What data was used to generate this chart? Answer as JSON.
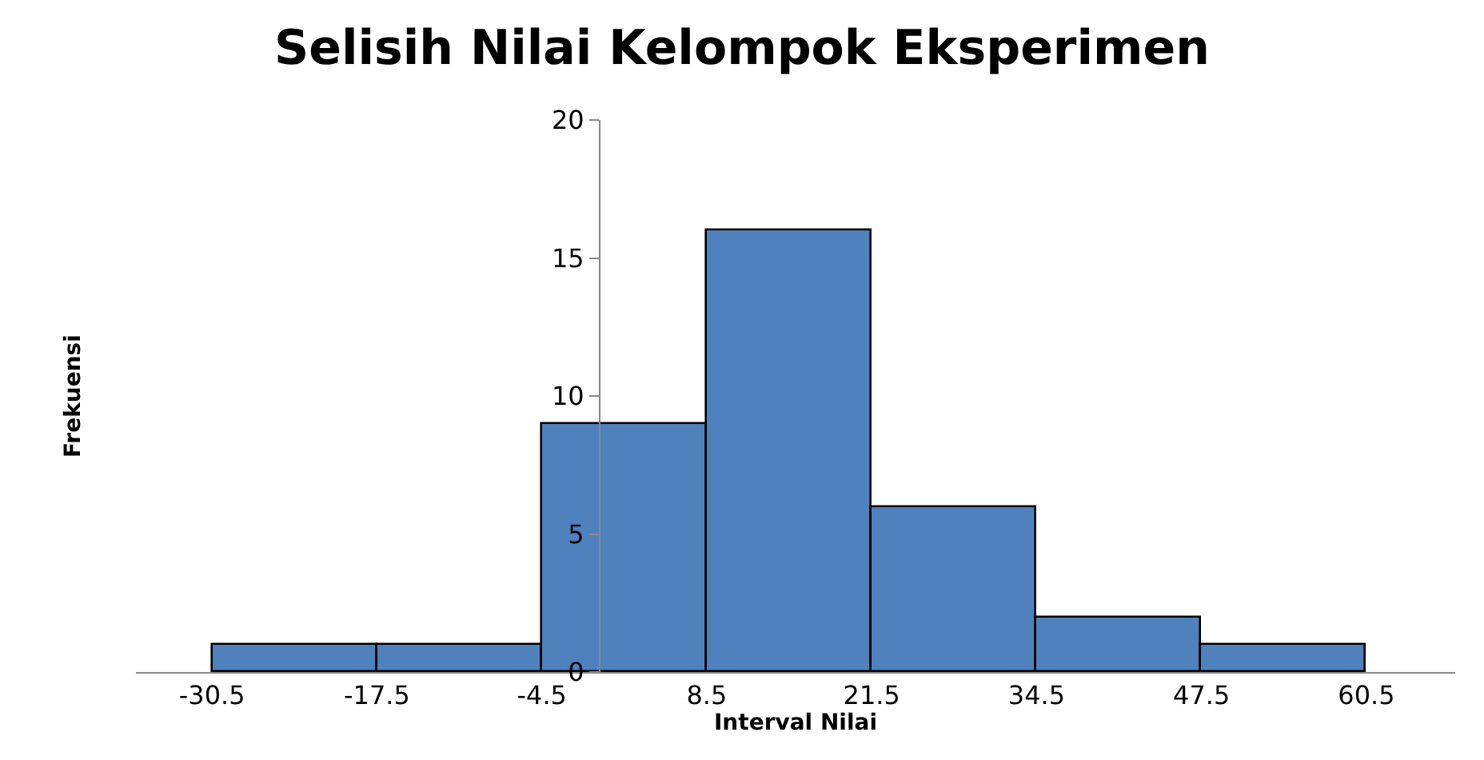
{
  "chart_data": {
    "type": "histogram",
    "title": "Selisih Nilai Kelompok Eksperimen",
    "xlabel": "Interval Nilai",
    "ylabel": "Frekuensi",
    "bins": [
      -30.5,
      -17.5,
      -4.5,
      8.5,
      21.5,
      34.5,
      47.5,
      60.5
    ],
    "values": [
      1,
      1,
      9,
      16,
      6,
      2,
      1
    ],
    "color": "#4f81bd",
    "xlim": [
      -36.5,
      67.5
    ],
    "xticks": [
      -30.5,
      -17.5,
      -4.5,
      8.5,
      21.5,
      34.5,
      47.5,
      60.5
    ],
    "ylim": [
      0,
      20
    ],
    "yticks": [
      0,
      5,
      10,
      15,
      20
    ]
  }
}
